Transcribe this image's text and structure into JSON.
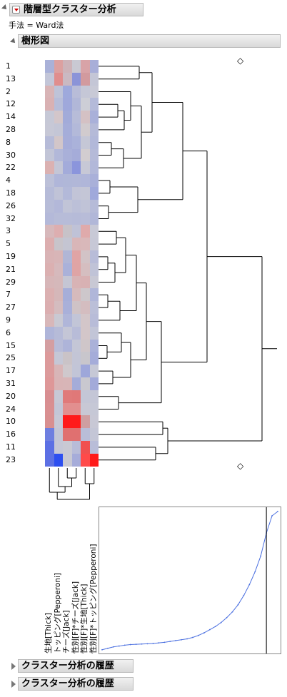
{
  "report": {
    "title": "階層型クラスター分析",
    "method_label": "手法 = Ward法"
  },
  "dendrogram": {
    "title": "樹形図",
    "row_labels": [
      "1",
      "13",
      "2",
      "12",
      "14",
      "28",
      "8",
      "30",
      "22",
      "4",
      "18",
      "26",
      "32",
      "3",
      "5",
      "19",
      "21",
      "29",
      "7",
      "27",
      "9",
      "6",
      "15",
      "25",
      "17",
      "31",
      "20",
      "24",
      "10",
      "16",
      "11",
      "23"
    ],
    "column_labels": [
      "生地[Thick]",
      "トッピング[Pepperoni]",
      "チーズ[Jack]",
      "性別[F]*チーズ[Jack]",
      "性別[F]*生地[Thick]",
      "性別[F]*トッピング[Pepperoni]"
    ],
    "heatmap_colors": [
      [
        "#a9b1d8",
        "#dca0a0",
        "#cdb3b9",
        "#c9c9d3",
        "#d8a3a7",
        "#a8aed8"
      ],
      [
        "#c3c6d8",
        "#e08e8e",
        "#cab9c2",
        "#8b94d8",
        "#d29a9e",
        "#c4c6d6"
      ],
      [
        "#d8b4b6",
        "#bec3d8",
        "#9ea9dc",
        "#b8bcd8",
        "#c5c7d6",
        "#c8c9d6"
      ],
      [
        "#d9b1b3",
        "#b7bdd9",
        "#9fa8db",
        "#b1b7d8",
        "#cdced6",
        "#b4bad9"
      ],
      [
        "#c6c8d6",
        "#d3c6ca",
        "#a2abd9",
        "#b7bcd8",
        "#d4c1c4",
        "#a9b0d9"
      ],
      [
        "#c7c8d6",
        "#c4c6d6",
        "#a5add9",
        "#b3b9d9",
        "#d1cbce",
        "#b5bad8"
      ],
      [
        "#b6bbd8",
        "#d2c6c9",
        "#a6add9",
        "#aab2da",
        "#c5c7d6",
        "#b2b8d9"
      ],
      [
        "#c2c5d7",
        "#b2b8d9",
        "#a9b0d9",
        "#a5acd9",
        "#d2cdd0",
        "#b5bad8"
      ],
      [
        "#dbb1b1",
        "#c4c6d6",
        "#a3abda",
        "#8b95dc",
        "#c7c8d6",
        "#b2b8d9"
      ],
      [
        "#bcc0d8",
        "#b0b6d9",
        "#b0b7d8",
        "#b1b7d8",
        "#b0b6d9",
        "#a9b0d9"
      ],
      [
        "#b6bbd8",
        "#c0c3d7",
        "#b3b9d9",
        "#c2c4d7",
        "#c4c6d6",
        "#a0a9db"
      ],
      [
        "#b7bcd8",
        "#b3b8d9",
        "#c1c4d7",
        "#bcc0d8",
        "#c0c3d7",
        "#b6bbd8"
      ],
      [
        "#b4b9d9",
        "#b7bcd8",
        "#b7bcd8",
        "#b6bbd8",
        "#b8bcd8",
        "#b1b7d8"
      ],
      [
        "#d7b8bb",
        "#ddaeb0",
        "#c7c2c8",
        "#bfc2d7",
        "#dfaaab",
        "#c8c9d6"
      ],
      [
        "#dcaeaf",
        "#c8c4ca",
        "#c4c5d2",
        "#d9b6b8",
        "#d9b8ba",
        "#c7c8d6"
      ],
      [
        "#d9b3b5",
        "#d8b5b7",
        "#b1b6d6",
        "#e0a4a5",
        "#d2c3c6",
        "#b8bcd8"
      ],
      [
        "#dbb0b1",
        "#d6b9bc",
        "#aab1d9",
        "#dfa4a5",
        "#d5bec0",
        "#c0c3d7"
      ],
      [
        "#d7b6b8",
        "#d5b8ba",
        "#c5c6d4",
        "#d8b3b5",
        "#d8b1b3",
        "#c8c8d4"
      ],
      [
        "#dbb0b1",
        "#d5b7b9",
        "#a6aed9",
        "#d6babc",
        "#cdc7cb",
        "#b0b6d9"
      ],
      [
        "#dbaeb0",
        "#d4bcbf",
        "#a9b0d9",
        "#cfc3c6",
        "#d4bdc0",
        "#bbbfd8"
      ],
      [
        "#d8b7b9",
        "#c9c9d3",
        "#b0b6d9",
        "#c2c5d7",
        "#d3c6c9",
        "#b8bcd8"
      ],
      [
        "#afb5d9",
        "#b6bbd8",
        "#c4c6d6",
        "#b8bcd8",
        "#d3c6c9",
        "#c2c5d7"
      ],
      [
        "#d49ea1",
        "#b8bcd8",
        "#aeb4d9",
        "#c4c6d6",
        "#cfc6c9",
        "#aab1d9"
      ],
      [
        "#dc9a9b",
        "#c5c7d6",
        "#cac3c7",
        "#c3c5d6",
        "#c8c6cc",
        "#a5acd9"
      ],
      [
        "#dc9a9b",
        "#d8b5b7",
        "#cfc8cc",
        "#c2c5d7",
        "#9ea7da",
        "#c6c8d6"
      ],
      [
        "#de9798",
        "#d9b4b6",
        "#d8b5b7",
        "#a4acd9",
        "#c9c8cf",
        "#a3aad9"
      ],
      [
        "#d88e91",
        "#c7c8d5",
        "#e07a7a",
        "#e07878",
        "#c4c6d6",
        "#c4c6d6"
      ],
      [
        "#d98f91",
        "#c3c6d6",
        "#e28f8f",
        "#e28f8f",
        "#c8c8d5",
        "#c6c8d6"
      ],
      [
        "#d88f90",
        "#c7c8d5",
        "#ff1a1a",
        "#ff1a1a",
        "#cf9ea1",
        "#c8c8d5"
      ],
      [
        "#6e7fe0",
        "#c3c6d6",
        "#e07070",
        "#e07070",
        "#b9bdd8",
        "#c4c6d6"
      ],
      [
        "#5c70e4",
        "#c5c7d6",
        "#c9c9d3",
        "#b8bcd8",
        "#f05050",
        "#b9bdd8"
      ],
      [
        "#5c70e4",
        "#2d4ff0",
        "#c9c9d3",
        "#a6acd9",
        "#ff4a4a",
        "#ff1a1a"
      ]
    ],
    "diamond_marker": "◇"
  },
  "scree_plot": {
    "points": [
      0.3,
      0.8,
      1.3,
      1.6,
      1.9,
      2.1,
      2.2,
      2.3,
      2.4,
      2.5,
      2.7,
      2.9,
      3.2,
      3.5,
      3.8,
      4.1,
      4.6,
      5.3,
      6.2,
      7.3,
      8.4,
      9.8,
      11.5,
      13.5,
      16.0,
      19.2,
      23.0,
      27.5,
      33.0,
      41.0,
      47.0,
      48.5
    ],
    "cut_index": 29
  },
  "collapsed_sections": [
    {
      "label": "クラスター分析の履歴"
    },
    {
      "label": "クラスター分析の履歴"
    }
  ],
  "colors": {
    "header_bg": "#dedede",
    "line": "#000000",
    "scree_line": "#4a6fe0"
  }
}
